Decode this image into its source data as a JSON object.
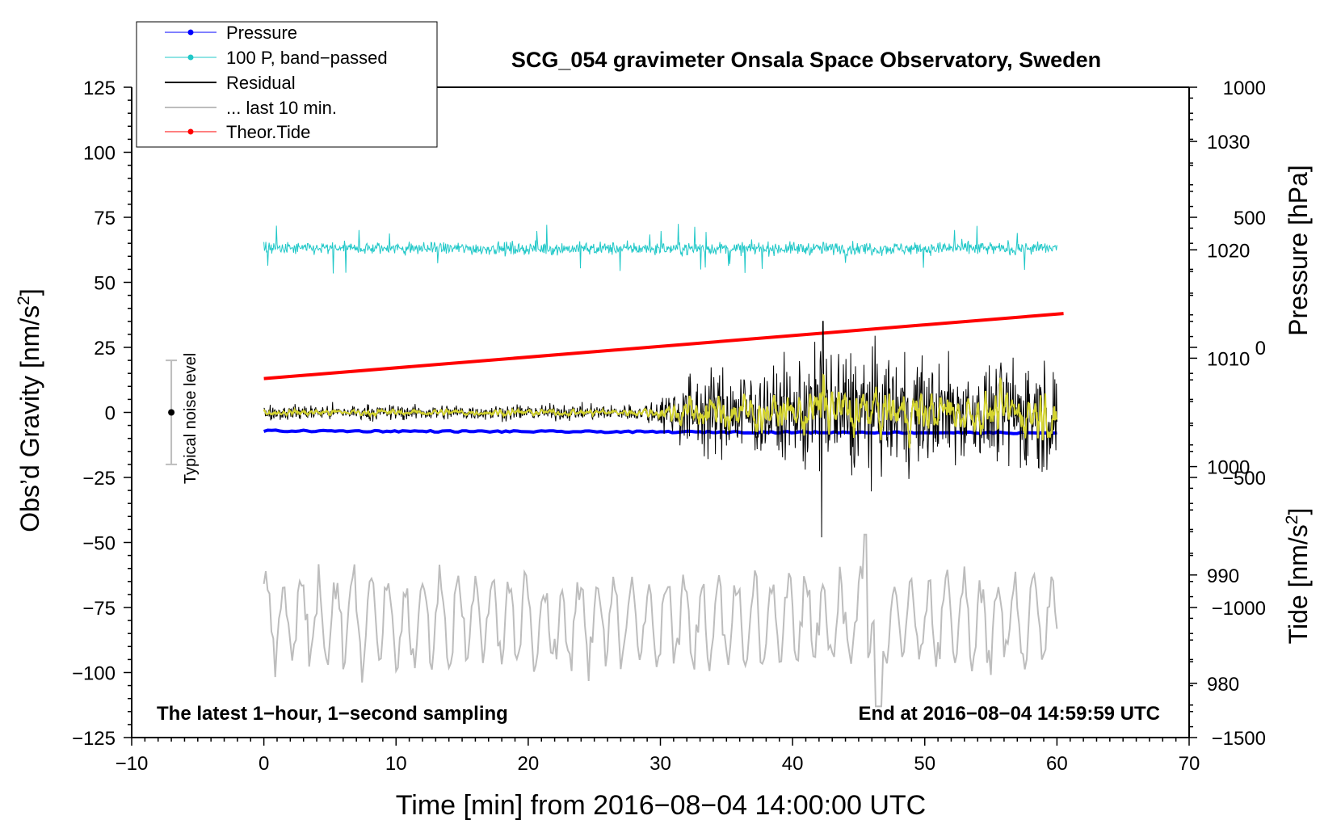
{
  "chart_data": {
    "type": "line",
    "title": "SCG_054 gravimeter Onsala Space Observatory, Sweden",
    "xlabel": "Time [min] from 2016−08−04 14:00:00 UTC",
    "ylabel": "Obs’d Gravity [nm/s²]",
    "ylabel_main": "Obs’d Gravity [nm/s",
    "ylabel_sup": "2",
    "ylabel_end": "]",
    "y2label": "Pressure [hPa]",
    "y3label_main": "Tide [nm/s",
    "y3label_sup": "2",
    "y3label_end": "]",
    "xlim": [
      -10,
      70
    ],
    "ylim": [
      -125,
      125
    ],
    "pressure_lim": [
      975,
      1035
    ],
    "tide_lim": [
      -1500,
      1000
    ],
    "x_ticks": [
      -10,
      0,
      10,
      20,
      30,
      40,
      50,
      60,
      70
    ],
    "x_tick_labels": [
      "−10",
      "0",
      "10",
      "20",
      "30",
      "40",
      "50",
      "60",
      "70"
    ],
    "y_ticks": [
      125,
      100,
      75,
      50,
      25,
      0,
      -25,
      -50,
      -75,
      -100,
      -125
    ],
    "y_tick_labels": [
      "125",
      "100",
      "75",
      "50",
      "25",
      "0",
      "−25",
      "−50",
      "−75",
      "−100",
      "−125"
    ],
    "pressure_ticks": [
      1030,
      1020,
      1010,
      1000,
      990,
      980
    ],
    "pressure_tick_labels": [
      "1030",
      "1020",
      "1010",
      "1000",
      "990",
      "980"
    ],
    "tide_ticks": [
      1000,
      500,
      0,
      -500,
      -1000,
      -1500
    ],
    "tide_tick_labels": [
      "1000",
      "500",
      "0",
      "−500",
      "−1000",
      "−1500"
    ],
    "legend": {
      "position": "top-left",
      "entries": [
        {
          "label": "Pressure",
          "color": "#0000ff",
          "marker": true
        },
        {
          "label": "100 P, band−passed",
          "color": "#20c8c8",
          "marker": true
        },
        {
          "label": "Residual",
          "color": "#000000",
          "marker": false
        },
        {
          "label": "... last 10 min.",
          "color": "#bdbdbd",
          "marker": false
        },
        {
          "label": "Theor.Tide",
          "color": "#ff0000",
          "marker": true
        }
      ]
    },
    "noise_bar": {
      "x": -7,
      "center": 0,
      "half_range": 20,
      "label": "Typical noise level"
    },
    "series": [
      {
        "name": "Pressure",
        "axis": "pressure",
        "color": "#0000ff",
        "x_range": [
          0,
          60
        ],
        "start": 1003.3,
        "end": 1003.1,
        "noise": 0.15
      },
      {
        "name": "100 P, band−passed",
        "axis": "gravity",
        "color": "#20c8c8",
        "x_range": [
          0,
          60
        ],
        "center": 63,
        "amplitude": 4,
        "max_spike": 10
      },
      {
        "name": "Residual",
        "axis": "gravity",
        "color": "#000000",
        "x_range": [
          0,
          60
        ],
        "center": 0,
        "envelope_x": [
          0,
          28,
          30,
          32,
          36,
          40,
          42,
          45,
          50,
          55,
          58,
          60
        ],
        "envelope_amp": [
          2,
          2,
          4,
          10,
          12,
          12,
          20,
          16,
          14,
          12,
          16,
          14
        ],
        "extremes": {
          "max": 35,
          "min": -48
        }
      },
      {
        "name": "... last 10 min.",
        "axis": "gravity",
        "color": "#bdbdbd",
        "x_range": [
          0,
          60
        ],
        "center": -80,
        "amplitude": 15,
        "min": -113,
        "max": -47
      },
      {
        "name": "Theor.Tide",
        "axis": "tide",
        "color": "#ff0000",
        "x": [
          0,
          60.5
        ],
        "y": [
          -120,
          130
        ]
      },
      {
        "name": "Residual (smoothed)",
        "axis": "gravity",
        "color": "#d4d430",
        "x_range": [
          0,
          60
        ],
        "center": 0,
        "amplitude_factor": 0.45
      }
    ],
    "annotations": {
      "bottom_left": "The latest 1−hour, 1−second sampling",
      "bottom_right": "End at 2016−08−04 14:59:59 UTC"
    }
  }
}
